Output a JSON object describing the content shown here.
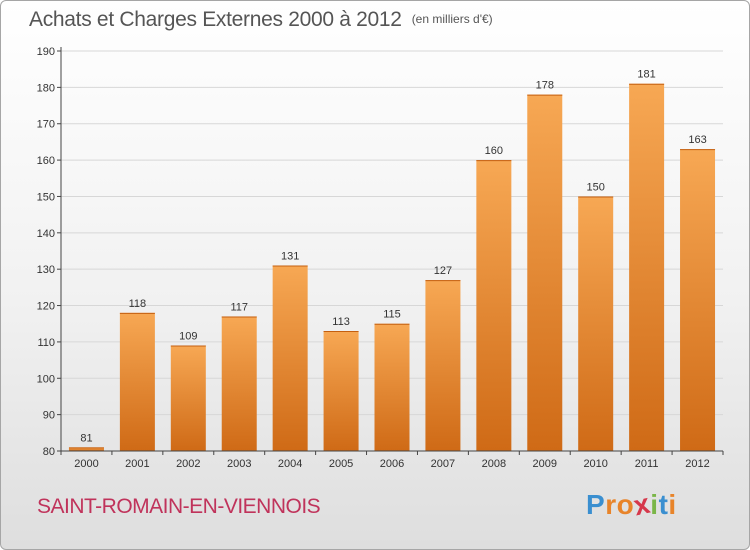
{
  "header": {
    "title": "Achats et Charges Externes 2000 à 2012",
    "unit": "(en milliers d'€)"
  },
  "footer": {
    "commune": "SAINT-ROMAIN-EN-VIENNOIS",
    "logo": [
      "P",
      "r",
      "o",
      "x",
      "i",
      "t",
      "i"
    ],
    "logo_colors": [
      "#3a8fd0",
      "#e8842a",
      "#e8842a",
      "#d6384b",
      "#7ab648",
      "#3a8fd0",
      "#e8842a"
    ]
  },
  "colors": {
    "bar_light": "#f7a854",
    "bar_dark": "#cf6a16",
    "grid": "#d7d7d7"
  },
  "chart_data": {
    "type": "bar",
    "title": "Achats et Charges Externes 2000 à 2012",
    "subtitle": "(en milliers d'€)",
    "categories": [
      "2000",
      "2001",
      "2002",
      "2003",
      "2004",
      "2005",
      "2006",
      "2007",
      "2008",
      "2009",
      "2010",
      "2011",
      "2012"
    ],
    "values": [
      81,
      118,
      109,
      117,
      131,
      113,
      115,
      127,
      160,
      178,
      150,
      181,
      163
    ],
    "value_labels": [
      "81",
      "118",
      "109",
      "117",
      "131",
      "113",
      "115",
      "127",
      "160",
      "178",
      "150",
      "181",
      "163"
    ],
    "ylim": [
      80,
      190
    ],
    "yticks": [
      80,
      90,
      100,
      110,
      120,
      130,
      140,
      150,
      160,
      170,
      180,
      190
    ],
    "ytick_labels": [
      "80",
      "90",
      "100",
      "110",
      "120",
      "130",
      "140",
      "150",
      "160",
      "170",
      "180",
      "190"
    ],
    "grid": true,
    "legend": false
  }
}
